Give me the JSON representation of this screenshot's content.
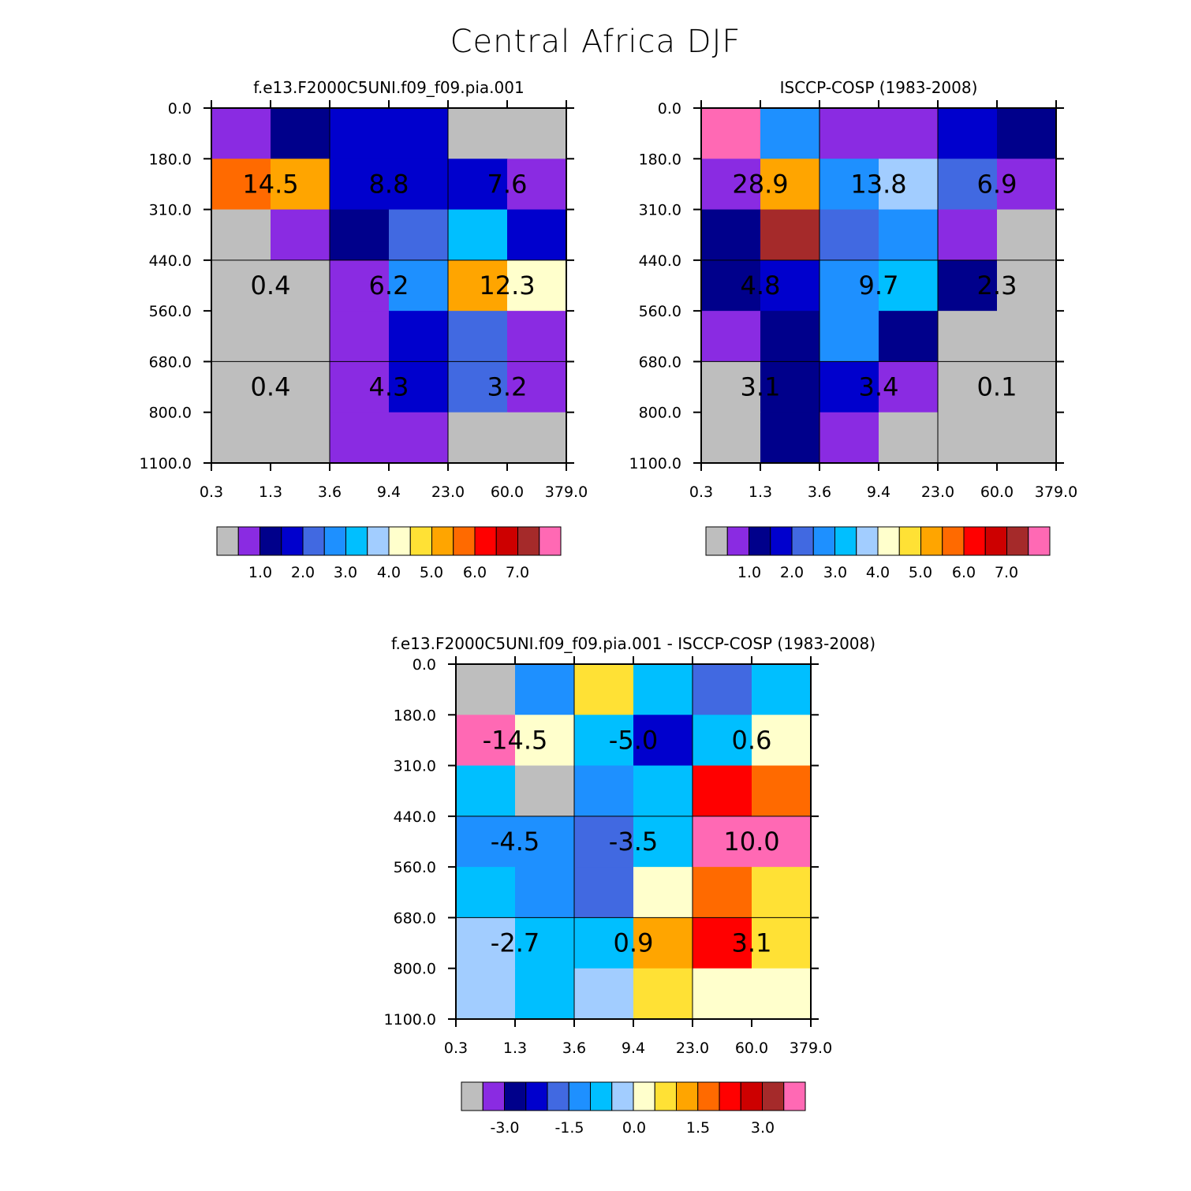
{
  "title": "Central Africa DJF",
  "palette": [
    "#BEBEBE",
    "#8A2BE2",
    "#00008B",
    "#0000CD",
    "#4169E1",
    "#1E90FF",
    "#00BFFF",
    "#A2CDFF",
    "#FFFFCC",
    "#FFE135",
    "#FFA500",
    "#FF6A00",
    "#FF0000",
    "#CD0000",
    "#A52A2A",
    "#FF69B4"
  ],
  "chart_data": [
    {
      "type": "heatmap",
      "title": "f.e13.F2000C5UNI.f09_f09.pia.001",
      "xticks": [
        "0.3",
        "1.3",
        "3.6",
        "9.4",
        "23.0",
        "60.0",
        "379.0"
      ],
      "yticks": [
        "0.0",
        "180.0",
        "310.0",
        "440.0",
        "560.0",
        "680.0",
        "800.0",
        "1100.0"
      ],
      "color_index_grid": [
        [
          1,
          2,
          3,
          3,
          0,
          0
        ],
        [
          11,
          10,
          3,
          3,
          3,
          1
        ],
        [
          0,
          1,
          2,
          4,
          6,
          3
        ],
        [
          0,
          0,
          1,
          5,
          10,
          8
        ],
        [
          0,
          0,
          1,
          3,
          4,
          1
        ],
        [
          0,
          0,
          1,
          3,
          4,
          1
        ],
        [
          0,
          0,
          1,
          1,
          0,
          0
        ]
      ],
      "group_sums": [
        [
          "14.5",
          "8.8",
          "7.6"
        ],
        [
          "0.4",
          "6.2",
          "12.3"
        ],
        [
          "0.4",
          "4.3",
          "3.2"
        ]
      ],
      "colorbar_labels": [
        "1.0",
        "2.0",
        "3.0",
        "4.0",
        "5.0",
        "6.0",
        "7.0"
      ]
    },
    {
      "type": "heatmap",
      "title": "ISCCP-COSP (1983-2008)",
      "xticks": [
        "0.3",
        "1.3",
        "3.6",
        "9.4",
        "23.0",
        "60.0",
        "379.0"
      ],
      "yticks": [
        "0.0",
        "180.0",
        "310.0",
        "440.0",
        "560.0",
        "680.0",
        "800.0",
        "1100.0"
      ],
      "color_index_grid": [
        [
          15,
          5,
          1,
          1,
          3,
          2
        ],
        [
          1,
          10,
          5,
          7,
          4,
          1
        ],
        [
          2,
          14,
          4,
          5,
          1,
          0
        ],
        [
          2,
          3,
          5,
          6,
          2,
          0
        ],
        [
          1,
          2,
          5,
          2,
          0,
          0
        ],
        [
          0,
          2,
          3,
          1,
          0,
          0
        ],
        [
          0,
          2,
          1,
          0,
          0,
          0
        ]
      ],
      "group_sums": [
        [
          "28.9",
          "13.8",
          "6.9"
        ],
        [
          "4.8",
          "9.7",
          "2.3"
        ],
        [
          "3.1",
          "3.4",
          "0.1"
        ]
      ],
      "colorbar_labels": [
        "1.0",
        "2.0",
        "3.0",
        "4.0",
        "5.0",
        "6.0",
        "7.0"
      ]
    },
    {
      "type": "heatmap",
      "title": "f.e13.F2000C5UNI.f09_f09.pia.001 - ISCCP-COSP (1983-2008)",
      "xticks": [
        "0.3",
        "1.3",
        "3.6",
        "9.4",
        "23.0",
        "60.0",
        "379.0"
      ],
      "yticks": [
        "0.0",
        "180.0",
        "310.0",
        "440.0",
        "560.0",
        "680.0",
        "800.0",
        "1100.0"
      ],
      "color_index_grid": [
        [
          0,
          5,
          9,
          6,
          4,
          6
        ],
        [
          15,
          8,
          6,
          3,
          6,
          8
        ],
        [
          6,
          0,
          5,
          6,
          12,
          11
        ],
        [
          5,
          5,
          4,
          6,
          15,
          15
        ],
        [
          6,
          5,
          4,
          8,
          11,
          9
        ],
        [
          7,
          6,
          6,
          10,
          12,
          9
        ],
        [
          7,
          6,
          7,
          9,
          8,
          8
        ]
      ],
      "group_sums": [
        [
          "-14.5",
          "-5.0",
          "0.6"
        ],
        [
          "-4.5",
          "-3.5",
          "10.0"
        ],
        [
          "-2.7",
          "0.9",
          "3.1"
        ]
      ],
      "colorbar_labels": [
        "-3.0",
        "-1.5",
        "0.0",
        "1.5",
        "3.0"
      ]
    }
  ]
}
